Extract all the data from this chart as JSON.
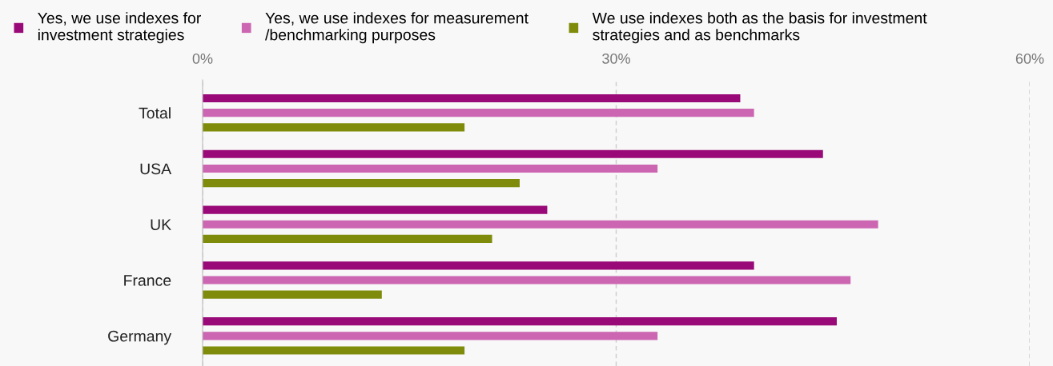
{
  "chart_data": {
    "type": "bar",
    "orientation": "horizontal",
    "categories": [
      "Total",
      "USA",
      "UK",
      "France",
      "Germany"
    ],
    "series": [
      {
        "name": "Yes, we use indexes for\ninvestment strategies",
        "color": "#990a78",
        "values": [
          39,
          45,
          25,
          40,
          46
        ]
      },
      {
        "name": "Yes, we use indexes for measurement\n/benchmarking purposes",
        "color": "#cc66b2",
        "values": [
          40,
          33,
          49,
          47,
          33
        ]
      },
      {
        "name": "We use indexes both as the basis for investment\nstrategies and as benchmarks",
        "color": "#7f8c0b",
        "values": [
          19,
          23,
          21,
          13,
          19
        ]
      }
    ],
    "xlim": [
      0,
      60
    ],
    "xticks": [
      {
        "value": 0,
        "label": "0%"
      },
      {
        "value": 30,
        "label": "30%"
      },
      {
        "value": 60,
        "label": "60%"
      }
    ],
    "grid": "x",
    "legend": "top"
  }
}
